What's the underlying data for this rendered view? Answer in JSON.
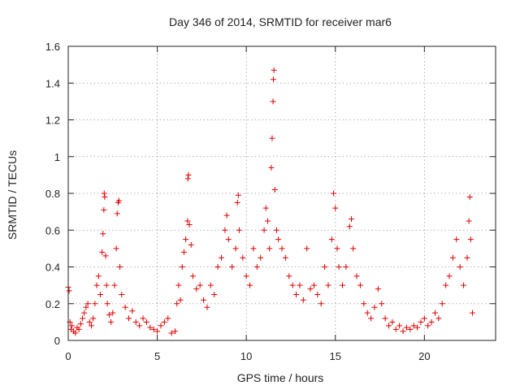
{
  "chart_data": {
    "type": "scatter",
    "title": "Day 346 of 2014, SRMTID for receiver mar6",
    "xlabel": "GPS time / hours",
    "ylabel": "SRMTID / TECUs",
    "xlim": [
      0,
      24
    ],
    "ylim": [
      0,
      1.6
    ],
    "xticks": [
      0,
      5,
      10,
      15,
      20
    ],
    "xtick_labels": [
      "0",
      "5",
      "10",
      "15",
      "20"
    ],
    "yticks": [
      0,
      0.2,
      0.4,
      0.6,
      0.8,
      1,
      1.2,
      1.4,
      1.6
    ],
    "ytick_labels": [
      "0",
      "0.2",
      "0.4",
      "0.6",
      "0.8",
      "1",
      "1.2",
      "1.4",
      "1.6"
    ],
    "grid": true,
    "marker": "plus",
    "color": "#e00000",
    "series": [
      {
        "name": "mar6",
        "points": [
          [
            0.0,
            0.29
          ],
          [
            0.05,
            0.27
          ],
          [
            0.1,
            0.1
          ],
          [
            0.15,
            0.06
          ],
          [
            0.2,
            0.08
          ],
          [
            0.3,
            0.05
          ],
          [
            0.4,
            0.04
          ],
          [
            0.5,
            0.07
          ],
          [
            0.6,
            0.06
          ],
          [
            0.7,
            0.09
          ],
          [
            0.8,
            0.12
          ],
          [
            0.9,
            0.15
          ],
          [
            1.0,
            0.18
          ],
          [
            1.1,
            0.2
          ],
          [
            1.2,
            0.1
          ],
          [
            1.3,
            0.08
          ],
          [
            1.4,
            0.12
          ],
          [
            1.5,
            0.2
          ],
          [
            1.6,
            0.3
          ],
          [
            1.7,
            0.35
          ],
          [
            1.8,
            0.25
          ],
          [
            1.9,
            0.48
          ],
          [
            1.95,
            0.58
          ],
          [
            2.0,
            0.71
          ],
          [
            2.02,
            0.8
          ],
          [
            2.05,
            0.78
          ],
          [
            2.1,
            0.46
          ],
          [
            2.15,
            0.3
          ],
          [
            2.2,
            0.2
          ],
          [
            2.3,
            0.14
          ],
          [
            2.4,
            0.1
          ],
          [
            2.5,
            0.15
          ],
          [
            2.6,
            0.3
          ],
          [
            2.7,
            0.5
          ],
          [
            2.75,
            0.69
          ],
          [
            2.8,
            0.75
          ],
          [
            2.85,
            0.76
          ],
          [
            2.9,
            0.4
          ],
          [
            3.0,
            0.25
          ],
          [
            3.2,
            0.18
          ],
          [
            3.4,
            0.12
          ],
          [
            3.6,
            0.16
          ],
          [
            3.8,
            0.1
          ],
          [
            4.0,
            0.08
          ],
          [
            4.2,
            0.12
          ],
          [
            4.4,
            0.1
          ],
          [
            4.6,
            0.07
          ],
          [
            4.8,
            0.06
          ],
          [
            5.0,
            0.05
          ],
          [
            5.2,
            0.08
          ],
          [
            5.4,
            0.1
          ],
          [
            5.6,
            0.12
          ],
          [
            5.8,
            0.04
          ],
          [
            6.0,
            0.05
          ],
          [
            6.1,
            0.2
          ],
          [
            6.2,
            0.3
          ],
          [
            6.3,
            0.22
          ],
          [
            6.4,
            0.4
          ],
          [
            6.5,
            0.48
          ],
          [
            6.6,
            0.55
          ],
          [
            6.7,
            0.65
          ],
          [
            6.72,
            0.88
          ],
          [
            6.75,
            0.9
          ],
          [
            6.8,
            0.63
          ],
          [
            6.9,
            0.52
          ],
          [
            7.0,
            0.35
          ],
          [
            7.2,
            0.28
          ],
          [
            7.4,
            0.3
          ],
          [
            7.6,
            0.22
          ],
          [
            7.8,
            0.18
          ],
          [
            8.0,
            0.3
          ],
          [
            8.2,
            0.25
          ],
          [
            8.4,
            0.4
          ],
          [
            8.6,
            0.45
          ],
          [
            8.8,
            0.6
          ],
          [
            8.9,
            0.68
          ],
          [
            9.0,
            0.55
          ],
          [
            9.2,
            0.4
          ],
          [
            9.4,
            0.5
          ],
          [
            9.5,
            0.75
          ],
          [
            9.55,
            0.79
          ],
          [
            9.6,
            0.6
          ],
          [
            9.8,
            0.45
          ],
          [
            10.0,
            0.35
          ],
          [
            10.2,
            0.3
          ],
          [
            10.4,
            0.5
          ],
          [
            10.6,
            0.4
          ],
          [
            10.8,
            0.45
          ],
          [
            11.0,
            0.6
          ],
          [
            11.1,
            0.72
          ],
          [
            11.2,
            0.65
          ],
          [
            11.3,
            0.5
          ],
          [
            11.4,
            0.94
          ],
          [
            11.45,
            1.1
          ],
          [
            11.5,
            1.3
          ],
          [
            11.52,
            1.42
          ],
          [
            11.55,
            1.47
          ],
          [
            11.6,
            0.82
          ],
          [
            11.7,
            0.6
          ],
          [
            11.8,
            0.55
          ],
          [
            12.0,
            0.5
          ],
          [
            12.2,
            0.45
          ],
          [
            12.4,
            0.35
          ],
          [
            12.6,
            0.3
          ],
          [
            12.8,
            0.25
          ],
          [
            13.0,
            0.3
          ],
          [
            13.2,
            0.22
          ],
          [
            13.4,
            0.5
          ],
          [
            13.6,
            0.28
          ],
          [
            13.8,
            0.3
          ],
          [
            14.0,
            0.25
          ],
          [
            14.2,
            0.2
          ],
          [
            14.4,
            0.4
          ],
          [
            14.6,
            0.3
          ],
          [
            14.8,
            0.55
          ],
          [
            14.9,
            0.8
          ],
          [
            15.0,
            0.72
          ],
          [
            15.1,
            0.5
          ],
          [
            15.2,
            0.4
          ],
          [
            15.4,
            0.3
          ],
          [
            15.6,
            0.4
          ],
          [
            15.8,
            0.62
          ],
          [
            15.9,
            0.66
          ],
          [
            16.0,
            0.5
          ],
          [
            16.2,
            0.35
          ],
          [
            16.4,
            0.3
          ],
          [
            16.6,
            0.2
          ],
          [
            16.8,
            0.15
          ],
          [
            17.0,
            0.12
          ],
          [
            17.2,
            0.18
          ],
          [
            17.4,
            0.28
          ],
          [
            17.6,
            0.2
          ],
          [
            17.8,
            0.12
          ],
          [
            18.0,
            0.08
          ],
          [
            18.2,
            0.1
          ],
          [
            18.4,
            0.06
          ],
          [
            18.6,
            0.08
          ],
          [
            18.8,
            0.05
          ],
          [
            19.0,
            0.07
          ],
          [
            19.2,
            0.06
          ],
          [
            19.4,
            0.08
          ],
          [
            19.6,
            0.07
          ],
          [
            19.8,
            0.1
          ],
          [
            20.0,
            0.12
          ],
          [
            20.2,
            0.08
          ],
          [
            20.4,
            0.1
          ],
          [
            20.6,
            0.15
          ],
          [
            20.8,
            0.12
          ],
          [
            21.0,
            0.2
          ],
          [
            21.2,
            0.3
          ],
          [
            21.4,
            0.35
          ],
          [
            21.6,
            0.45
          ],
          [
            21.8,
            0.55
          ],
          [
            22.0,
            0.4
          ],
          [
            22.2,
            0.3
          ],
          [
            22.4,
            0.45
          ],
          [
            22.5,
            0.65
          ],
          [
            22.55,
            0.78
          ],
          [
            22.6,
            0.55
          ],
          [
            22.7,
            0.15
          ]
        ]
      }
    ]
  }
}
